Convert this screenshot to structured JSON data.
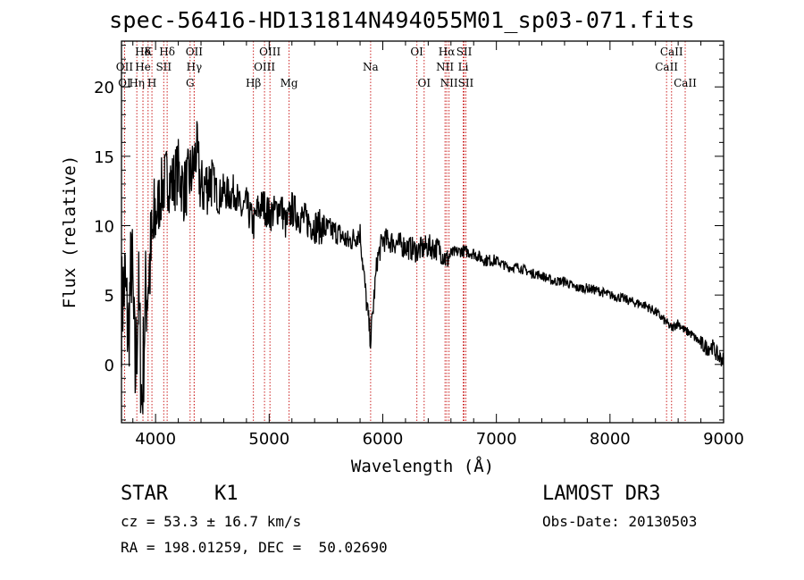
{
  "chart_data": {
    "type": "line",
    "title": "spec-56416-HD131814N494055M01_sp03-071.fits",
    "xlabel": "Wavelength (Å)",
    "ylabel": "Flux (relative)",
    "xlim": [
      3700,
      9000
    ],
    "ylim": [
      -4.2,
      23.3
    ],
    "xticks": [
      4000,
      5000,
      6000,
      7000,
      8000,
      9000
    ],
    "yticks": [
      0,
      5,
      10,
      15,
      20
    ],
    "series": [
      {
        "name": "spectrum",
        "x": [
          3700,
          3730,
          3760,
          3790,
          3820,
          3850,
          3880,
          3910,
          3940,
          3970,
          4000,
          4050,
          4100,
          4150,
          4200,
          4250,
          4300,
          4330,
          4360,
          4400,
          4450,
          4500,
          4550,
          4600,
          4650,
          4700,
          4750,
          4800,
          4861,
          4900,
          4950,
          5000,
          5050,
          5100,
          5150,
          5200,
          5250,
          5300,
          5400,
          5500,
          5600,
          5700,
          5800,
          5850,
          5893,
          5950,
          6000,
          6100,
          6200,
          6300,
          6400,
          6500,
          6563,
          6600,
          6700,
          6800,
          6900,
          7000,
          7100,
          7200,
          7300,
          7400,
          7500,
          7600,
          7700,
          7800,
          7900,
          8000,
          8100,
          8200,
          8300,
          8400,
          8500,
          8542,
          8600,
          8662,
          8700,
          8800,
          8850,
          8900,
          8950,
          9000
        ],
        "y": [
          4.0,
          6.0,
          2.0,
          8.0,
          -1.0,
          5.0,
          -3.0,
          4.5,
          6.5,
          8.5,
          10.5,
          12.5,
          13.5,
          13.0,
          14.0,
          12.5,
          13.5,
          14.0,
          15.5,
          12.5,
          13.0,
          13.5,
          12.0,
          12.5,
          12.2,
          12.5,
          11.0,
          11.5,
          10.0,
          11.2,
          11.5,
          10.8,
          11.0,
          11.5,
          10.0,
          11.2,
          10.8,
          10.5,
          10.0,
          9.8,
          9.5,
          8.8,
          9.5,
          5.0,
          1.8,
          7.5,
          9.0,
          8.8,
          8.5,
          8.2,
          8.5,
          8.3,
          7.5,
          8.0,
          8.2,
          8.0,
          7.5,
          7.5,
          7.0,
          7.0,
          6.6,
          6.4,
          6.0,
          6.0,
          5.5,
          5.5,
          5.3,
          5.0,
          4.8,
          4.5,
          4.3,
          3.8,
          3.0,
          2.6,
          3.0,
          2.4,
          2.3,
          1.5,
          1.2,
          1.3,
          0.6,
          0.3
        ]
      }
    ],
    "line_marks": [
      {
        "label": "Hδ",
        "x": 3889,
        "row": 1
      },
      {
        "label": "K",
        "x": 3934,
        "row": 1
      },
      {
        "label": "Hδ",
        "x": 4102,
        "row": 1
      },
      {
        "label": "OII",
        "x": 4340,
        "row": 1
      },
      {
        "label": "OIII",
        "x": 5007,
        "row": 1
      },
      {
        "label": "OI",
        "x": 6300,
        "row": 1
      },
      {
        "label": "Hα",
        "x": 6563,
        "row": 1
      },
      {
        "label": "SII",
        "x": 6716,
        "row": 1
      },
      {
        "label": "CaII",
        "x": 8542,
        "row": 1
      },
      {
        "label": "OII",
        "x": 3727,
        "row": 2
      },
      {
        "label": "He",
        "x": 3889,
        "row": 2
      },
      {
        "label": "SII",
        "x": 4072,
        "row": 2
      },
      {
        "label": "Hγ",
        "x": 4340,
        "row": 2
      },
      {
        "label": "OIII",
        "x": 4959,
        "row": 2
      },
      {
        "label": "Na",
        "x": 5893,
        "row": 2
      },
      {
        "label": "NII",
        "x": 6548,
        "row": 2
      },
      {
        "label": "Li",
        "x": 6708,
        "row": 2
      },
      {
        "label": "CaII",
        "x": 8498,
        "row": 2
      },
      {
        "label": "OI",
        "x": 3727,
        "row": 3
      },
      {
        "label": "Hη",
        "x": 3835,
        "row": 3
      },
      {
        "label": "H",
        "x": 3968,
        "row": 3
      },
      {
        "label": "G",
        "x": 4304,
        "row": 3
      },
      {
        "label": "Hβ",
        "x": 4861,
        "row": 3
      },
      {
        "label": "Mg",
        "x": 5175,
        "row": 3
      },
      {
        "label": "OI",
        "x": 6364,
        "row": 3
      },
      {
        "label": "NII",
        "x": 6583,
        "row": 3
      },
      {
        "label": "SII",
        "x": 6731,
        "row": 3
      },
      {
        "label": "CaII",
        "x": 8662,
        "row": 3
      }
    ]
  },
  "info": {
    "object_class": "STAR",
    "subclass": "K1",
    "survey": "LAMOST DR3",
    "cz": "cz = 53.3 ± 16.7 km/s",
    "obs_date": "Obs-Date: 20130503",
    "coords": "RA = 198.01259, DEC =  50.02690"
  },
  "colors": {
    "axis": "#000000",
    "spectrum": "#000000",
    "line_marker": "#cc2222"
  }
}
